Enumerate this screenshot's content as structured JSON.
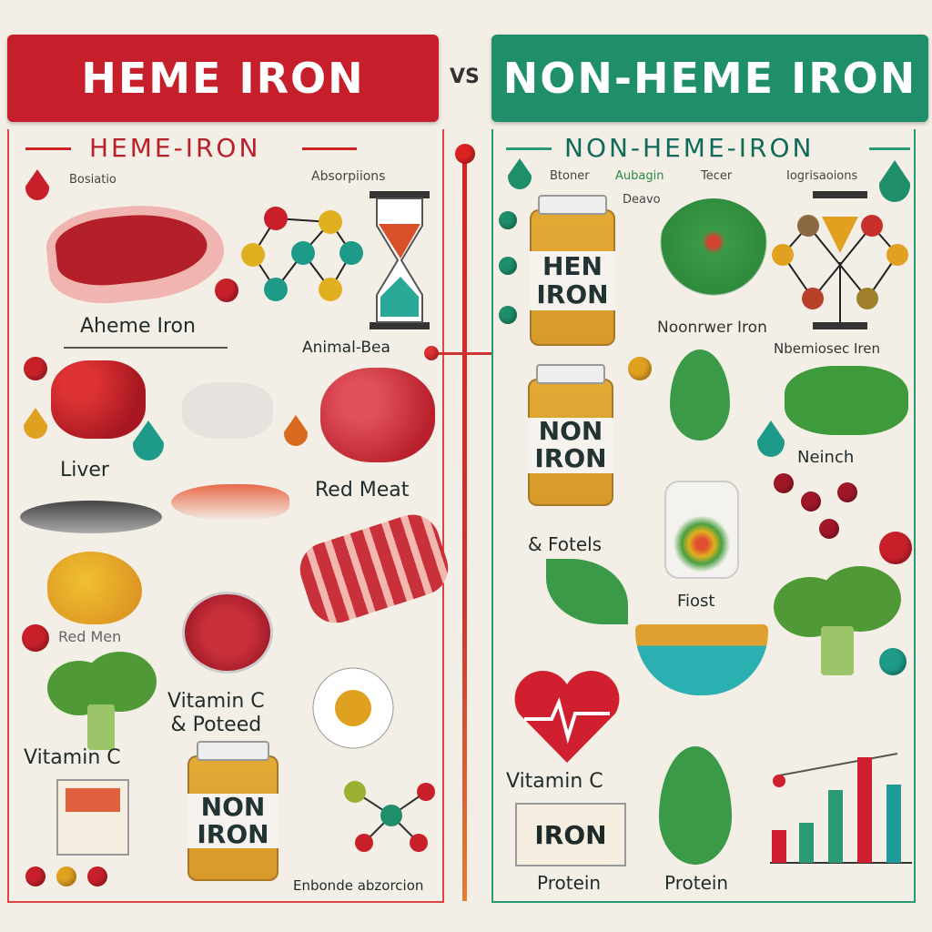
{
  "header": {
    "left_title": "HEME IRON",
    "vs": "VS",
    "right_title": "NON-HEME IRON"
  },
  "colors": {
    "heme": "#c8202a",
    "nonheme": "#1e8f6a",
    "background": "#f4efe6"
  },
  "left": {
    "subtitle": "HEME-IRON",
    "labels": {
      "heme_iron": "Aheme Iron",
      "animal_based": "Animal-Bea",
      "liver": "Liver",
      "red_meat": "Red Meat",
      "red_men": "Red Men",
      "vitamin_c_poteed": "Vitamin C\n& Poteed",
      "vitamin_c": "Vitamin C",
      "absorption": "Enbonde abzorcion",
      "absorption_top": "Absorpiions",
      "top_small": "Bosiatio"
    },
    "jar": {
      "line1": "NON",
      "line2": "IRON"
    }
  },
  "right": {
    "subtitle": "NON-HEME-IRON",
    "labels": {
      "nonheme_iron": "Noonrwer Iron",
      "nonheme2": "Nbemiosec Iren",
      "neinch": "Neinch",
      "fotels": "& Fotels",
      "fiost": "Fiost",
      "vitamin_c": "Vitamin C",
      "protein1": "Protein",
      "protein2": "Protein",
      "top1": "Btoner",
      "top2": "Aubagin",
      "top3": "Tecer",
      "top4": "Iogrisaoions",
      "deavo": "Deavo"
    },
    "jar1": {
      "line1": "HEN",
      "line2": "IRON"
    },
    "jar2": {
      "line1": "NON",
      "line2": "IRON"
    },
    "box": {
      "label": "IRON"
    }
  },
  "icons": [
    "blood-drop-icon",
    "steak-icon",
    "molecule-icon",
    "hourglass-icon",
    "jar-icon",
    "leafy-greens-icon",
    "broccoli-icon",
    "heart-pulse-icon",
    "bowl-icon",
    "bar-chart-icon",
    "fish-icon",
    "egg-icon"
  ]
}
